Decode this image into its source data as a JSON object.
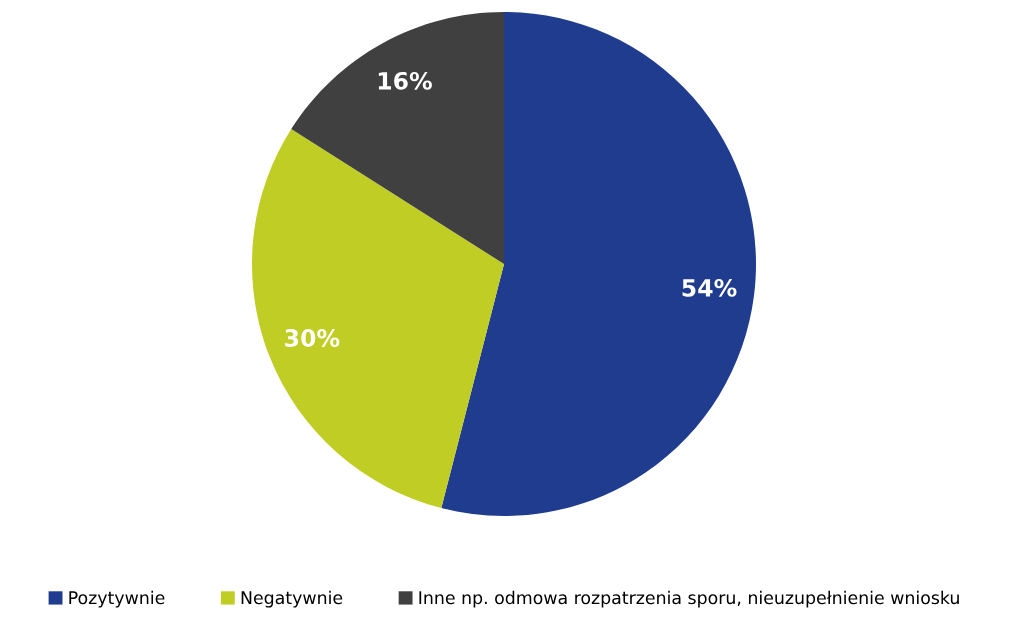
{
  "chart_data": {
    "type": "pie",
    "categories": [
      "Pozytywnie",
      "Negatywnie",
      "Inne np. odmowa rozpatrzenia sporu, nieuzupełnienie wniosku"
    ],
    "values": [
      54,
      30,
      16
    ],
    "colors": [
      "#1f3c8f",
      "#c0cd25",
      "#404040"
    ],
    "value_labels": [
      "54%",
      "30%",
      "16%"
    ],
    "legend": "bottom"
  }
}
